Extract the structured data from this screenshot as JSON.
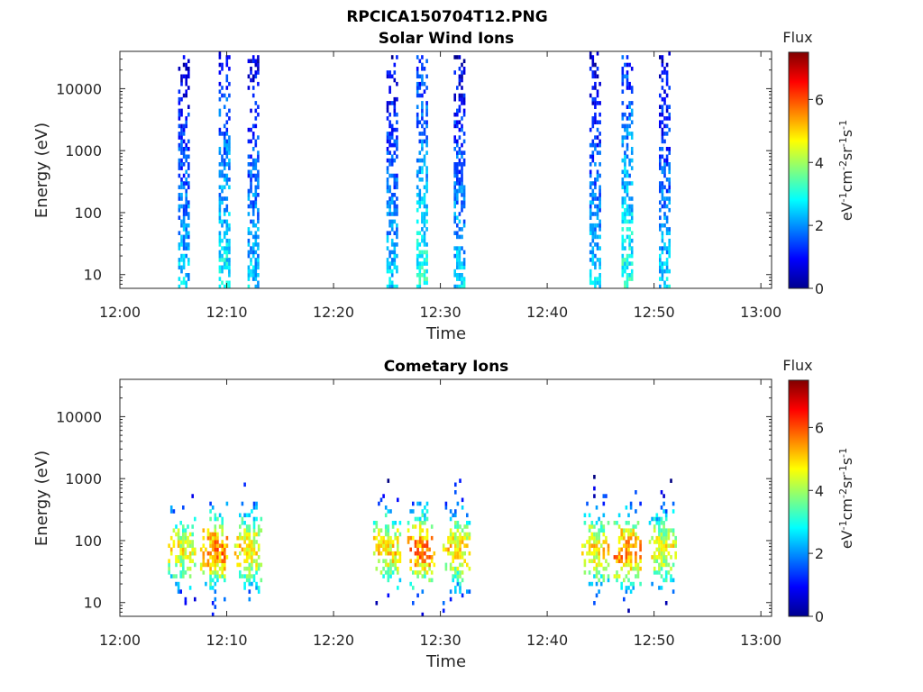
{
  "figure_title": "RPCICA150704T12.PNG",
  "chart_data": [
    {
      "type": "heatmap",
      "title": "Solar Wind Ions",
      "xlabel": "Time",
      "ylabel": "Energy (eV)",
      "x_range": [
        "12:00",
        "13:01"
      ],
      "xticks": [
        "12:00",
        "12:10",
        "12:20",
        "12:30",
        "12:40",
        "12:50",
        "13:00"
      ],
      "y_scale": "log",
      "ylim": [
        6,
        40000
      ],
      "yticks": [
        "10",
        "100",
        "1000",
        "10000"
      ],
      "colorbar": {
        "title": "Flux",
        "label": "eV-1cm-2sr-1s-1",
        "range": [
          0,
          7.5
        ],
        "ticks": [
          "0",
          "2",
          "4",
          "6"
        ]
      },
      "bursts": [
        {
          "center": "12:06",
          "level": 1.6
        },
        {
          "center": "12:09.8",
          "level": 2.0
        },
        {
          "center": "12:12.5",
          "level": 1.6
        },
        {
          "center": "12:25.5",
          "level": 1.6
        },
        {
          "center": "12:28.3",
          "level": 2.2
        },
        {
          "center": "12:31.8",
          "level": 1.6
        },
        {
          "center": "12:44.5",
          "level": 1.6
        },
        {
          "center": "12:47.5",
          "level": 2.2
        },
        {
          "center": "12:51",
          "level": 1.6
        }
      ]
    },
    {
      "type": "heatmap",
      "title": "Cometary Ions",
      "xlabel": "Time",
      "ylabel": "Energy (eV)",
      "x_range": [
        "12:00",
        "13:01"
      ],
      "xticks": [
        "12:00",
        "12:10",
        "12:20",
        "12:30",
        "12:40",
        "12:50",
        "13:00"
      ],
      "y_scale": "log",
      "ylim": [
        6,
        40000
      ],
      "yticks": [
        "10",
        "100",
        "1000",
        "10000"
      ],
      "colorbar": {
        "title": "Flux",
        "label": "eV-1cm-2sr-1s-1",
        "range": [
          0,
          7.5
        ],
        "ticks": [
          "0",
          "2",
          "4",
          "6"
        ]
      },
      "bursts": [
        {
          "center": "12:05.8",
          "level": 4.5
        },
        {
          "center": "12:08.8",
          "level": 5.5
        },
        {
          "center": "12:12",
          "level": 4.8
        },
        {
          "center": "12:25",
          "level": 4.8
        },
        {
          "center": "12:28.2",
          "level": 5.5
        },
        {
          "center": "12:31.5",
          "level": 4.8
        },
        {
          "center": "12:44.5",
          "level": 4.8
        },
        {
          "center": "12:47.5",
          "level": 5.5
        },
        {
          "center": "12:50.8",
          "level": 4.5
        }
      ]
    }
  ]
}
